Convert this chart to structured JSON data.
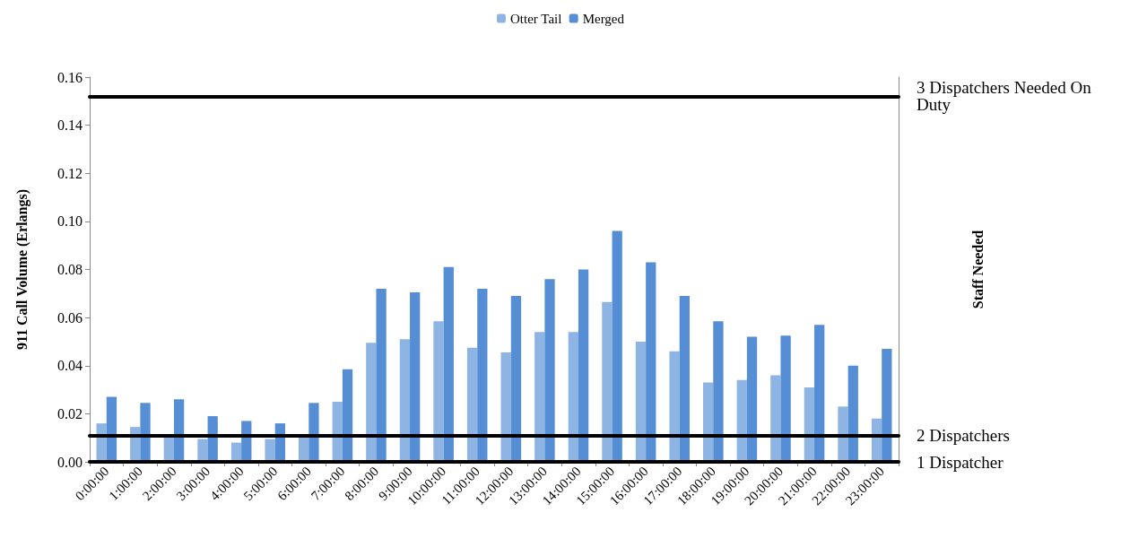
{
  "chart_data": {
    "type": "bar",
    "ylabel": "911 Call Volume (Erlangs)",
    "y2label": "Staff Needed",
    "categories": [
      "0:00:00",
      "1:00:00",
      "2:00:00",
      "3:00:00",
      "4:00:00",
      "5:00:00",
      "6:00:00",
      "7:00:00",
      "8:00:00",
      "9:00:00",
      "10:00:00",
      "11:00:00",
      "12:00:00",
      "13:00:00",
      "14:00:00",
      "15:00:00",
      "16:00:00",
      "17:00:00",
      "18:00:00",
      "19:00:00",
      "20:00:00",
      "21:00:00",
      "22:00:00",
      "23:00:00"
    ],
    "series": [
      {
        "name": "Otter Tail",
        "color": "#8eb4e3",
        "values": [
          0.016,
          0.0145,
          0.011,
          0.0095,
          0.008,
          0.0095,
          0.011,
          0.025,
          0.0495,
          0.051,
          0.0585,
          0.0475,
          0.0455,
          0.054,
          0.054,
          0.0665,
          0.05,
          0.046,
          0.033,
          0.034,
          0.036,
          0.031,
          0.023,
          0.018
        ]
      },
      {
        "name": "Merged",
        "color": "#558ed5",
        "values": [
          0.027,
          0.0245,
          0.026,
          0.019,
          0.017,
          0.016,
          0.0245,
          0.0385,
          0.072,
          0.0705,
          0.081,
          0.072,
          0.069,
          0.076,
          0.08,
          0.096,
          0.083,
          0.069,
          0.0585,
          0.052,
          0.0525,
          0.057,
          0.04,
          0.047
        ]
      }
    ],
    "ylim": [
      0,
      0.16
    ],
    "yticks": [
      {
        "value": 0,
        "label": "0.00"
      },
      {
        "value": 0.02,
        "label": "0.02"
      },
      {
        "value": 0.04,
        "label": "0.04"
      },
      {
        "value": 0.06,
        "label": "0.06"
      },
      {
        "value": 0.08,
        "label": "0.08"
      },
      {
        "value": 0.1,
        "label": "0.10"
      },
      {
        "value": 0.12,
        "label": "0.12"
      },
      {
        "value": 0.14,
        "label": "0.14"
      },
      {
        "value": 0.16,
        "label": "0.16"
      }
    ],
    "ref_lines": [
      {
        "axis": "y",
        "value": 0.152,
        "label": "3 Dispatchers Needed On Duty",
        "color": "#000000"
      },
      {
        "axis": "y",
        "value": 0.011,
        "label": "2 Dispatchers",
        "color": "#000000"
      },
      {
        "axis": "y",
        "value": 0,
        "label": "1 Dispatcher",
        "color": "#000000"
      }
    ],
    "grid": false,
    "legend": "top"
  }
}
